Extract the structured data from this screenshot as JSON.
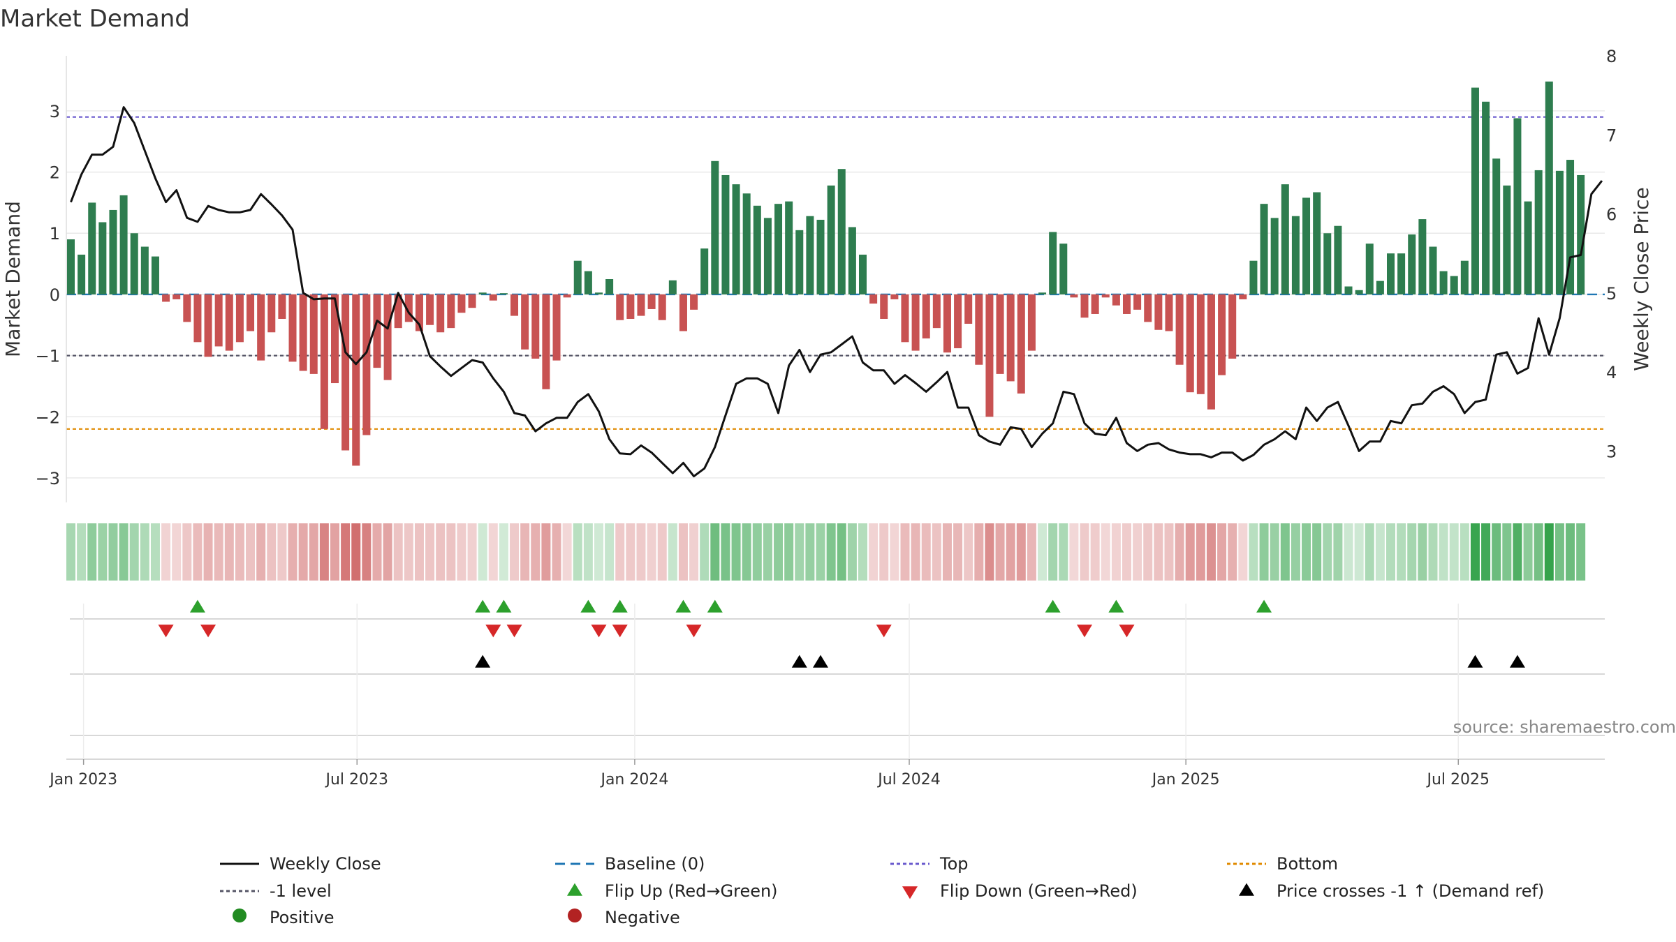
{
  "chart_data": {
    "type": "bar",
    "title": "Market Demand",
    "ylabel": "Market Demand",
    "y2label": "Weekly Close Price",
    "ylim": [
      -3.4,
      3.9
    ],
    "y2lim": [
      2.35,
      8.0
    ],
    "yticks": [
      3,
      2,
      1,
      0,
      -1,
      -2,
      -3
    ],
    "yticklabels": [
      "3",
      "2",
      "1",
      "0",
      "−1",
      "−2",
      "−3"
    ],
    "y2ticks": [
      8,
      7,
      6,
      5,
      4,
      3
    ],
    "y2ticklabels": [
      "8",
      "7",
      "6",
      "5",
      "4",
      "3"
    ],
    "reference_lines": {
      "top": 2.9,
      "bottom": -2.2,
      "minus_one": -1,
      "baseline": 0
    },
    "x_ticks": [
      {
        "label": "Jan 2023",
        "week": 1.2
      },
      {
        "label": "Jul 2023",
        "week": 27.1
      },
      {
        "label": "Jan 2024",
        "week": 53.4
      },
      {
        "label": "Jul 2024",
        "week": 79.4
      },
      {
        "label": "Jan 2025",
        "week": 105.6
      },
      {
        "label": "Jul 2025",
        "week": 131.4
      }
    ],
    "demand": [
      0.9,
      0.65,
      1.5,
      1.18,
      1.38,
      1.62,
      1.0,
      0.78,
      0.62,
      -0.12,
      -0.08,
      -0.45,
      -0.78,
      -1.02,
      -0.85,
      -0.92,
      -0.78,
      -0.6,
      -1.08,
      -0.62,
      -0.4,
      -1.1,
      -1.25,
      -1.3,
      -2.2,
      -1.45,
      -2.55,
      -2.8,
      -2.3,
      -1.2,
      -1.4,
      -0.55,
      -0.45,
      -0.6,
      -0.5,
      -0.62,
      -0.55,
      -0.3,
      -0.22,
      0.03,
      -0.1,
      0.02,
      -0.35,
      -0.9,
      -1.05,
      -1.55,
      -1.08,
      -0.05,
      0.55,
      0.38,
      0.03,
      0.25,
      -0.42,
      -0.4,
      -0.35,
      -0.24,
      -0.42,
      0.23,
      -0.6,
      -0.25,
      0.75,
      2.18,
      1.95,
      1.8,
      1.65,
      1.45,
      1.25,
      1.48,
      1.52,
      1.05,
      1.28,
      1.22,
      1.78,
      2.05,
      1.1,
      0.65,
      -0.15,
      -0.4,
      -0.08,
      -0.78,
      -0.92,
      -0.72,
      -0.55,
      -0.95,
      -0.88,
      -0.48,
      -1.15,
      -2.0,
      -1.3,
      -1.42,
      -1.62,
      -0.92,
      0.03,
      1.02,
      0.83,
      -0.05,
      -0.38,
      -0.32,
      -0.05,
      -0.18,
      -0.32,
      -0.25,
      -0.45,
      -0.58,
      -0.6,
      -1.15,
      -1.6,
      -1.63,
      -1.88,
      -1.32,
      -1.05,
      -0.08,
      0.55,
      1.48,
      1.25,
      1.8,
      1.28,
      1.58,
      1.67,
      1.0,
      1.12,
      0.13,
      0.07,
      0.83,
      0.22,
      0.67,
      0.67,
      0.98,
      1.23,
      0.78,
      0.38,
      0.3,
      0.55,
      3.38,
      3.15,
      2.22,
      1.78,
      2.88,
      1.52,
      2.03,
      3.48,
      2.02,
      2.2,
      1.95
    ],
    "weekly_close": [
      6.15,
      6.5,
      6.75,
      6.75,
      6.85,
      7.35,
      7.15,
      6.8,
      6.45,
      6.15,
      6.3,
      5.95,
      5.9,
      6.1,
      6.05,
      6.02,
      6.02,
      6.05,
      6.25,
      6.12,
      5.98,
      5.8,
      5.0,
      4.92,
      4.93,
      4.93,
      4.25,
      4.1,
      4.25,
      4.65,
      4.55,
      5.0,
      4.75,
      4.6,
      4.2,
      4.07,
      3.95,
      4.05,
      4.15,
      4.12,
      3.92,
      3.75,
      3.48,
      3.45,
      3.25,
      3.35,
      3.42,
      3.42,
      3.62,
      3.72,
      3.5,
      3.15,
      2.97,
      2.96,
      3.07,
      2.98,
      2.85,
      2.72,
      2.85,
      2.68,
      2.78,
      3.05,
      3.45,
      3.85,
      3.92,
      3.92,
      3.85,
      3.48,
      4.08,
      4.28,
      4.0,
      4.22,
      4.25,
      4.35,
      4.45,
      4.12,
      4.02,
      4.02,
      3.85,
      3.96,
      3.86,
      3.75,
      3.87,
      4.0,
      3.55,
      3.55,
      3.2,
      3.12,
      3.08,
      3.3,
      3.28,
      3.05,
      3.22,
      3.35,
      3.75,
      3.72,
      3.35,
      3.22,
      3.2,
      3.42,
      3.1,
      3.0,
      3.08,
      3.1,
      3.02,
      2.98,
      2.96,
      2.96,
      2.92,
      2.98,
      2.98,
      2.88,
      2.95,
      3.08,
      3.15,
      3.25,
      3.15,
      3.55,
      3.38,
      3.55,
      3.62,
      3.32,
      3.0,
      3.12,
      3.12,
      3.38,
      3.35,
      3.58,
      3.6,
      3.75,
      3.82,
      3.72,
      3.48,
      3.62,
      3.65,
      4.22,
      4.25,
      3.98,
      4.05,
      4.68,
      4.22,
      4.68,
      5.45,
      5.48,
      6.25,
      6.42
    ]
  },
  "heat_strip": {
    "label": "demand heat strip"
  },
  "flip_up_weeks": [
    12,
    39,
    41,
    49,
    52,
    58,
    61,
    93,
    99,
    113
  ],
  "flip_down_weeks": [
    9,
    13,
    40,
    42,
    50,
    52,
    59,
    77,
    96,
    100
  ],
  "price_cross_weeks": [
    39,
    69,
    71,
    133,
    137
  ],
  "source": "source: sharemaestro.com",
  "legend": [
    {
      "label": "Weekly Close",
      "symbol": "line-solid",
      "color": "#111111"
    },
    {
      "label": "Baseline (0)",
      "symbol": "line-dash",
      "color": "#1f77b4"
    },
    {
      "label": "Top",
      "symbol": "line-dot",
      "color": "#6a5acd"
    },
    {
      "label": "Bottom",
      "symbol": "line-dot",
      "color": "#e08a00"
    },
    {
      "label": "-1 level",
      "symbol": "line-dot",
      "color": "#555566"
    },
    {
      "label": "Flip Up (Red→Green)",
      "symbol": "triangle-up",
      "color": "#2ca02c"
    },
    {
      "label": "Flip Down (Green→Red)",
      "symbol": "triangle-down",
      "color": "#d62728"
    },
    {
      "label": "Price crosses -1 ↑ (Demand ref)",
      "symbol": "triangle-up",
      "color": "#000000"
    },
    {
      "label": "Positive",
      "symbol": "circle",
      "color": "#228b22"
    },
    {
      "label": "Negative",
      "symbol": "circle",
      "color": "#b22222"
    }
  ],
  "colors": {
    "positive": "#2e7d4f",
    "negative": "#c85252",
    "top": "#6a5acd",
    "bottom": "#e08a00",
    "minus_one": "#555566",
    "baseline": "#1f77b4",
    "close": "#111111",
    "flip_up": "#2ca02c",
    "flip_down": "#d62728",
    "cross": "#000000"
  }
}
